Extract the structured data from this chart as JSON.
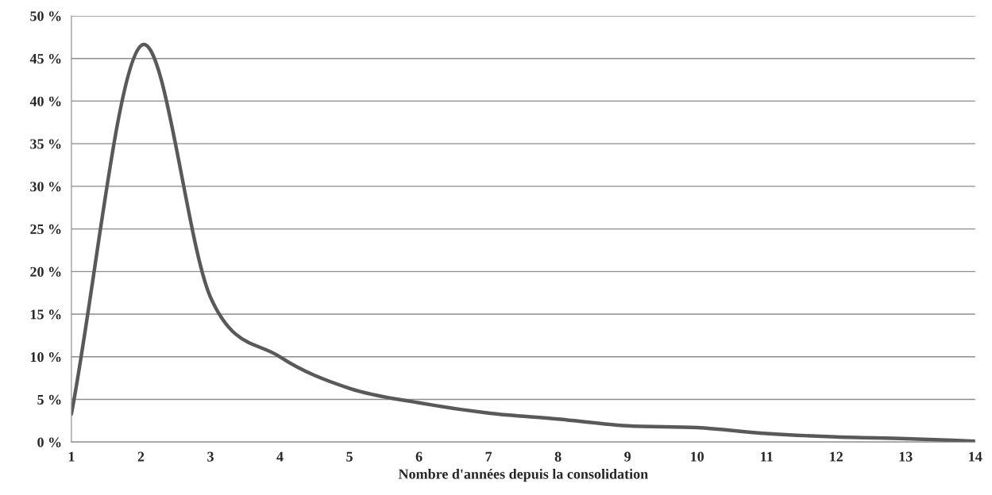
{
  "chart_data": {
    "type": "line",
    "xlabel": "Nombre d'années depuis la consolidation",
    "x": [
      1,
      2,
      3,
      4,
      5,
      6,
      7,
      8,
      9,
      10,
      11,
      12,
      13,
      14
    ],
    "series": [
      {
        "color": "#595959",
        "values": [
          3.3,
          46.5,
          17,
          10,
          6.3,
          4.6,
          3.4,
          2.7,
          1.9,
          1.7,
          1.0,
          0.6,
          0.4,
          0.1
        ]
      }
    ],
    "xlim": [
      1,
      14
    ],
    "xticks": [
      1,
      2,
      3,
      4,
      5,
      6,
      7,
      8,
      9,
      10,
      11,
      12,
      13,
      14
    ],
    "ylim": [
      0,
      50
    ],
    "yticks": [
      {
        "value": 0,
        "label": "0 %"
      },
      {
        "value": 5,
        "label": "5 %"
      },
      {
        "value": 10,
        "label": "10 %"
      },
      {
        "value": 15,
        "label": "15 %"
      },
      {
        "value": 20,
        "label": "20 %"
      },
      {
        "value": 25,
        "label": "25 %"
      },
      {
        "value": 30,
        "label": "30 %"
      },
      {
        "value": 35,
        "label": "35 %"
      },
      {
        "value": 40,
        "label": "40 %"
      },
      {
        "value": 45,
        "label": "45 %"
      },
      {
        "value": 50,
        "label": "50 %"
      }
    ],
    "grid": "y",
    "line_style": "solid"
  }
}
